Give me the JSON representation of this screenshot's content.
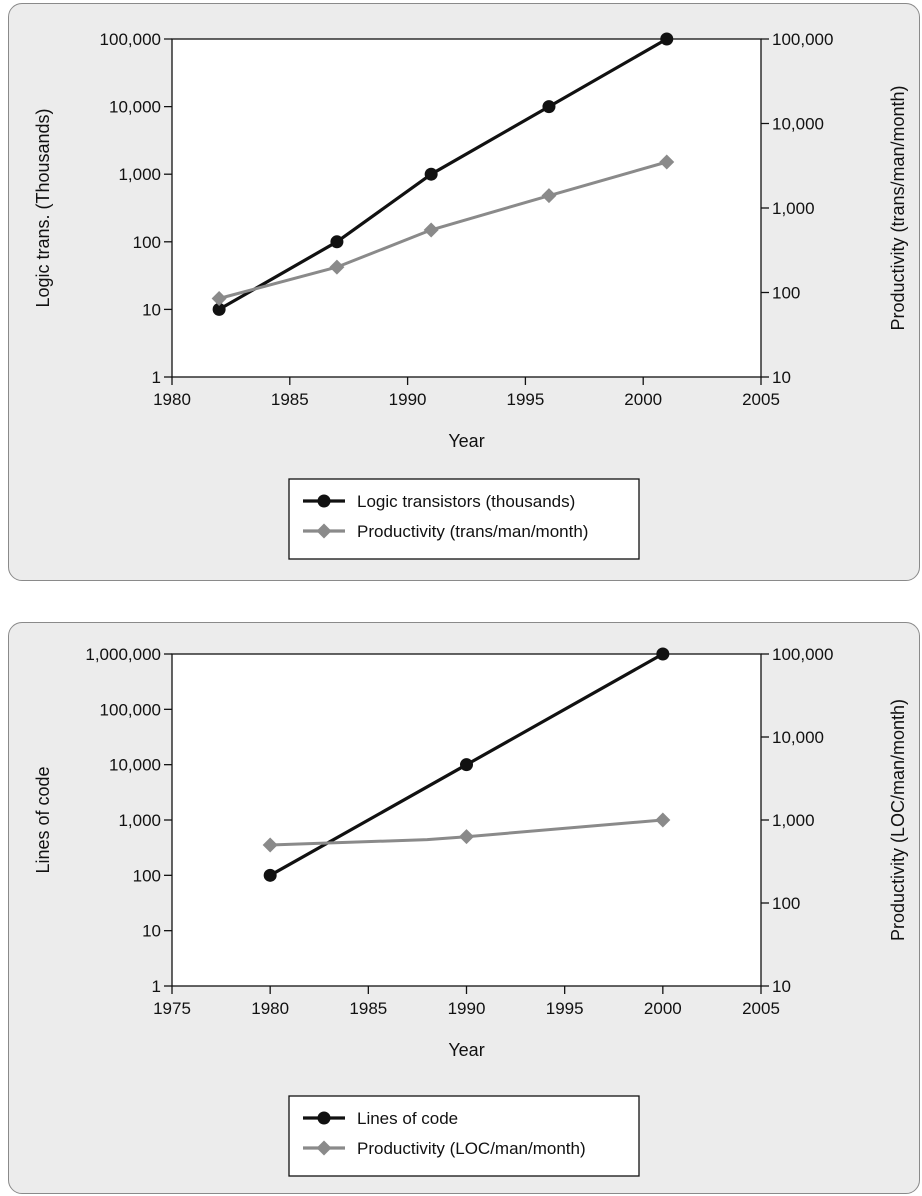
{
  "chart_data": [
    {
      "type": "line",
      "xlabel": "Year",
      "ylabel": "Logic trans. (Thousands)",
      "y2label": "Productivity (trans/man/month)",
      "xlim": [
        1980,
        2005
      ],
      "xticks": [
        1980,
        1985,
        1990,
        1995,
        2000,
        2005
      ],
      "ylim": [
        1,
        100000
      ],
      "yscale": "log",
      "yticks": [
        1,
        10,
        100,
        1000,
        10000,
        100000
      ],
      "ytick_labels": [
        "1",
        "10",
        "100",
        "1,000",
        "10,000",
        "100,000"
      ],
      "y2lim": [
        10,
        100000
      ],
      "y2scale": "log",
      "y2ticks": [
        10,
        100,
        1000,
        10000,
        100000
      ],
      "y2tick_labels": [
        "10",
        "100",
        "1,000",
        "10,000",
        "100,000"
      ],
      "grid": false,
      "legend_position": "bottom-center",
      "series": [
        {
          "name": "Logic transistors (thousands)",
          "axis": "left",
          "color": "#111111",
          "marker": "circle",
          "x": [
            1982,
            1987,
            1991,
            1996,
            2001
          ],
          "y": [
            10,
            100,
            1000,
            10000,
            100000
          ]
        },
        {
          "name": "Productivity (trans/man/month)",
          "axis": "right",
          "color": "#8a8a8a",
          "marker": "diamond",
          "x": [
            1982,
            1987,
            1991,
            1996,
            2001
          ],
          "y": [
            85,
            200,
            550,
            1400,
            3500
          ]
        }
      ]
    },
    {
      "type": "line",
      "xlabel": "Year",
      "ylabel": "Lines of code",
      "y2label": "Productivity (LOC/man/month)",
      "xlim": [
        1975,
        2005
      ],
      "xticks": [
        1975,
        1980,
        1985,
        1990,
        1995,
        2000,
        2005
      ],
      "ylim": [
        1,
        1000000
      ],
      "yscale": "log",
      "yticks": [
        1,
        10,
        100,
        1000,
        10000,
        100000,
        1000000
      ],
      "ytick_labels": [
        "1",
        "10",
        "100",
        "1,000",
        "10,000",
        "100,000",
        "1,000,000"
      ],
      "y2lim": [
        10,
        100000
      ],
      "y2scale": "log",
      "y2ticks": [
        10,
        100,
        1000,
        10000,
        100000
      ],
      "y2tick_labels": [
        "10",
        "100",
        "1,000",
        "10,000",
        "100,000"
      ],
      "grid": false,
      "legend_position": "bottom-center",
      "series": [
        {
          "name": "Lines of code",
          "axis": "left",
          "color": "#111111",
          "marker": "circle",
          "x": [
            1980,
            1990,
            2000
          ],
          "y": [
            100,
            10000,
            1000000
          ]
        },
        {
          "name": "Productivity (LOC/man/month)",
          "axis": "right",
          "color": "#8a8a8a",
          "marker": "diamond",
          "x": [
            1980,
            1988,
            1990,
            2000
          ],
          "y": [
            500,
            580,
            630,
            1000
          ],
          "marker_at": [
            true,
            false,
            true,
            true
          ]
        }
      ]
    }
  ]
}
